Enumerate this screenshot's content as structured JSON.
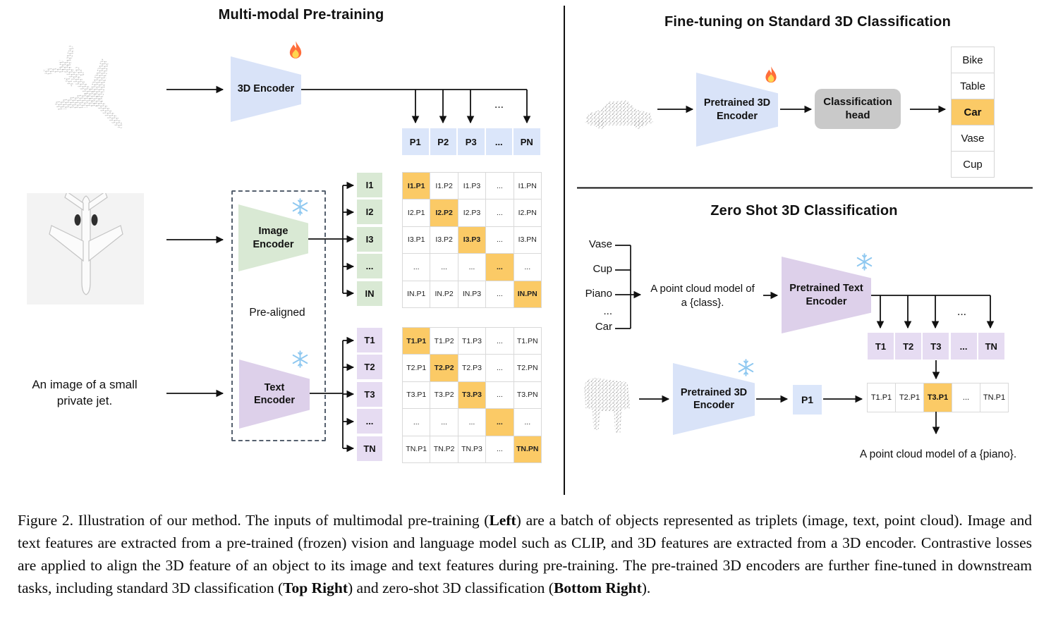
{
  "figure": {
    "left": {
      "title": "Multi-modal Pre-training",
      "inputs": {
        "text_line1": "An image of a small",
        "text_line2": "private jet."
      },
      "encoder_3d": "3D Encoder",
      "image_encoder_line1": "Image",
      "image_encoder_line2": "Encoder",
      "text_encoder_line1": "Text",
      "text_encoder_line2": "Encoder",
      "prealigned": "Pre-aligned",
      "ellipsis": "...",
      "p_row": [
        "P1",
        "P2",
        "P3",
        "...",
        "PN"
      ],
      "image_rows": [
        "I1",
        "I2",
        "I3",
        "...",
        "IN"
      ],
      "image_matrix": [
        [
          "I1.P1",
          "I1.P2",
          "I1.P3",
          "...",
          "I1.PN"
        ],
        [
          "I2.P1",
          "I2.P2",
          "I2.P3",
          "...",
          "I2.PN"
        ],
        [
          "I3.P1",
          "I3.P2",
          "I3.P3",
          "...",
          "I3.PN"
        ],
        [
          "...",
          "...",
          "...",
          "...",
          "..."
        ],
        [
          "IN.P1",
          "IN.P2",
          "IN.P3",
          "...",
          "IN.PN"
        ]
      ],
      "text_rows": [
        "T1",
        "T2",
        "T3",
        "...",
        "TN"
      ],
      "text_matrix": [
        [
          "T1.P1",
          "T1.P2",
          "T1.P3",
          "...",
          "T1.PN"
        ],
        [
          "T2.P1",
          "T2.P2",
          "T2.P3",
          "...",
          "T2.PN"
        ],
        [
          "T3.P1",
          "T3.P2",
          "T3.P3",
          "...",
          "T3.PN"
        ],
        [
          "...",
          "...",
          "...",
          "...",
          "..."
        ],
        [
          "TN.P1",
          "TN.P2",
          "TN.P3",
          "...",
          "TN.PN"
        ]
      ]
    },
    "top_right": {
      "title": "Fine-tuning on Standard 3D Classification",
      "encoder_line1": "Pretrained 3D",
      "encoder_line2": "Encoder",
      "head_line1": "Classification",
      "head_line2": "head",
      "classes": [
        "Bike",
        "Table",
        "Car",
        "Vase",
        "Cup"
      ],
      "predicted_class": "Car"
    },
    "bottom_right": {
      "title": "Zero Shot 3D Classification",
      "classes": [
        "Vase",
        "Cup",
        "Piano",
        "...",
        "Car"
      ],
      "prompt_line1": "A point cloud model of",
      "prompt_line2": "a {class}.",
      "text_encoder_line1": "Pretrained Text",
      "text_encoder_line2": "Encoder",
      "encoder_line1": "Pretrained 3D",
      "encoder_line2": "Encoder",
      "t_row": [
        "T1",
        "T2",
        "T3",
        "...",
        "TN"
      ],
      "ellipsis": "...",
      "p_feature": "P1",
      "sim_row": [
        "T1.P1",
        "T2.P1",
        "T3.P1",
        "...",
        "TN.P1"
      ],
      "sim_highlight_index": 2,
      "result": "A point cloud model of a {piano}."
    }
  },
  "icons": {
    "trainable": "flame-icon",
    "frozen": "snowflake-icon",
    "point_clouds": [
      "airplane-point-cloud",
      "car-point-cloud",
      "piano-point-cloud"
    ],
    "image_input": "airplane-photo"
  },
  "colors": {
    "encoder_blue": "#d9e3f8",
    "cell_blue": "#dbe6fa",
    "encoder_green": "#d9e9d4",
    "encoder_purple": "#ddd0ea",
    "cell_purple": "#e6dcf2",
    "highlight_orange": "#fbca66",
    "head_gray": "#c9c9c9",
    "cell_border": "#d9d9d9",
    "point_gray": "#9e9e9e"
  },
  "caption": {
    "segments": [
      {
        "text": "Figure 2. Illustration of our method. The inputs of multimodal pre-training (",
        "bold": false
      },
      {
        "text": "Left",
        "bold": true
      },
      {
        "text": ") are a batch of objects represented as triplets (image, text, point cloud). Image and text features are extracted from a pre-trained (frozen) vision and language model such as CLIP, and 3D features are extracted from a 3D encoder. Contrastive losses are applied to align the 3D feature of an object to its image and text features during pre-training. The pre-trained 3D encoders are further fine-tuned in downstream tasks, including standard 3D classification (",
        "bold": false
      },
      {
        "text": "Top Right",
        "bold": true
      },
      {
        "text": ") and zero-shot 3D classification (",
        "bold": false
      },
      {
        "text": "Bottom Right",
        "bold": true
      },
      {
        "text": ").",
        "bold": false
      }
    ]
  }
}
